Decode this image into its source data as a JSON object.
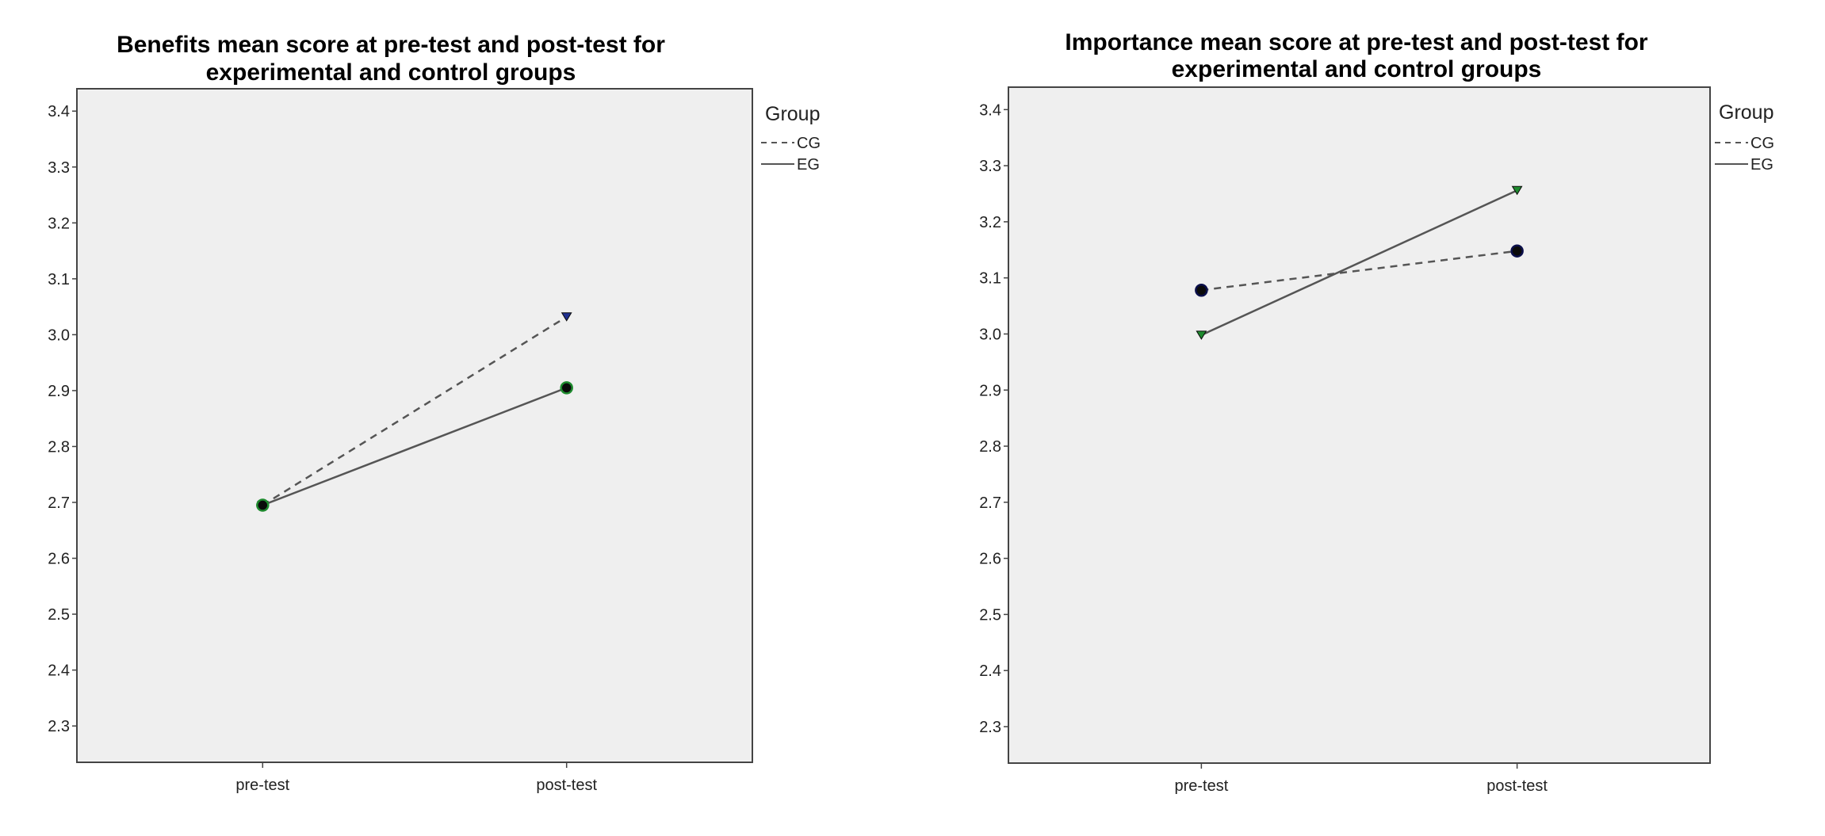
{
  "chart_data": [
    {
      "type": "line",
      "title_lines": [
        "Benefits mean score at pre-test and post-test for",
        "experimental and control groups"
      ],
      "categories": [
        "pre-test",
        "post-test"
      ],
      "xlabel": "",
      "ylabel": "",
      "ylim": [
        2.235,
        3.44
      ],
      "yticks": [
        "2.3",
        "2.4",
        "2.5",
        "2.6",
        "2.7",
        "2.8",
        "2.9",
        "3.0",
        "3.1",
        "3.2",
        "3.3",
        "3.4"
      ],
      "grid": false,
      "legend": {
        "title": "Group",
        "position": "right"
      },
      "series": [
        {
          "name": "CG",
          "values": [
            2.695,
            3.032
          ],
          "line": "dashed",
          "marker": "triangle",
          "marker_color": "#1f2f8f"
        },
        {
          "name": "EG",
          "values": [
            2.695,
            2.905
          ],
          "line": "solid",
          "marker": "circle",
          "marker_color": "#1e8a2e"
        }
      ]
    },
    {
      "type": "line",
      "title_lines": [
        "Importance mean score at pre-test and post-test for",
        "experimental and control groups"
      ],
      "categories": [
        "pre-test",
        "post-test"
      ],
      "xlabel": "",
      "ylabel": "",
      "ylim": [
        2.235,
        3.44
      ],
      "yticks": [
        "2.3",
        "2.4",
        "2.5",
        "2.6",
        "2.7",
        "2.8",
        "2.9",
        "3.0",
        "3.1",
        "3.2",
        "3.3",
        "3.4"
      ],
      "grid": false,
      "legend": {
        "title": "Group",
        "position": "right"
      },
      "series": [
        {
          "name": "CG",
          "values": [
            3.078,
            3.148
          ],
          "line": "dashed",
          "marker": "circle",
          "marker_color": "#0b0f4a"
        },
        {
          "name": "EG",
          "values": [
            2.998,
            3.256
          ],
          "line": "solid",
          "marker": "triangle",
          "marker_color": "#1e8a2e"
        }
      ]
    }
  ],
  "colors": {
    "plot_background": "#efefef",
    "axis": "#444444",
    "line": "#555555"
  }
}
